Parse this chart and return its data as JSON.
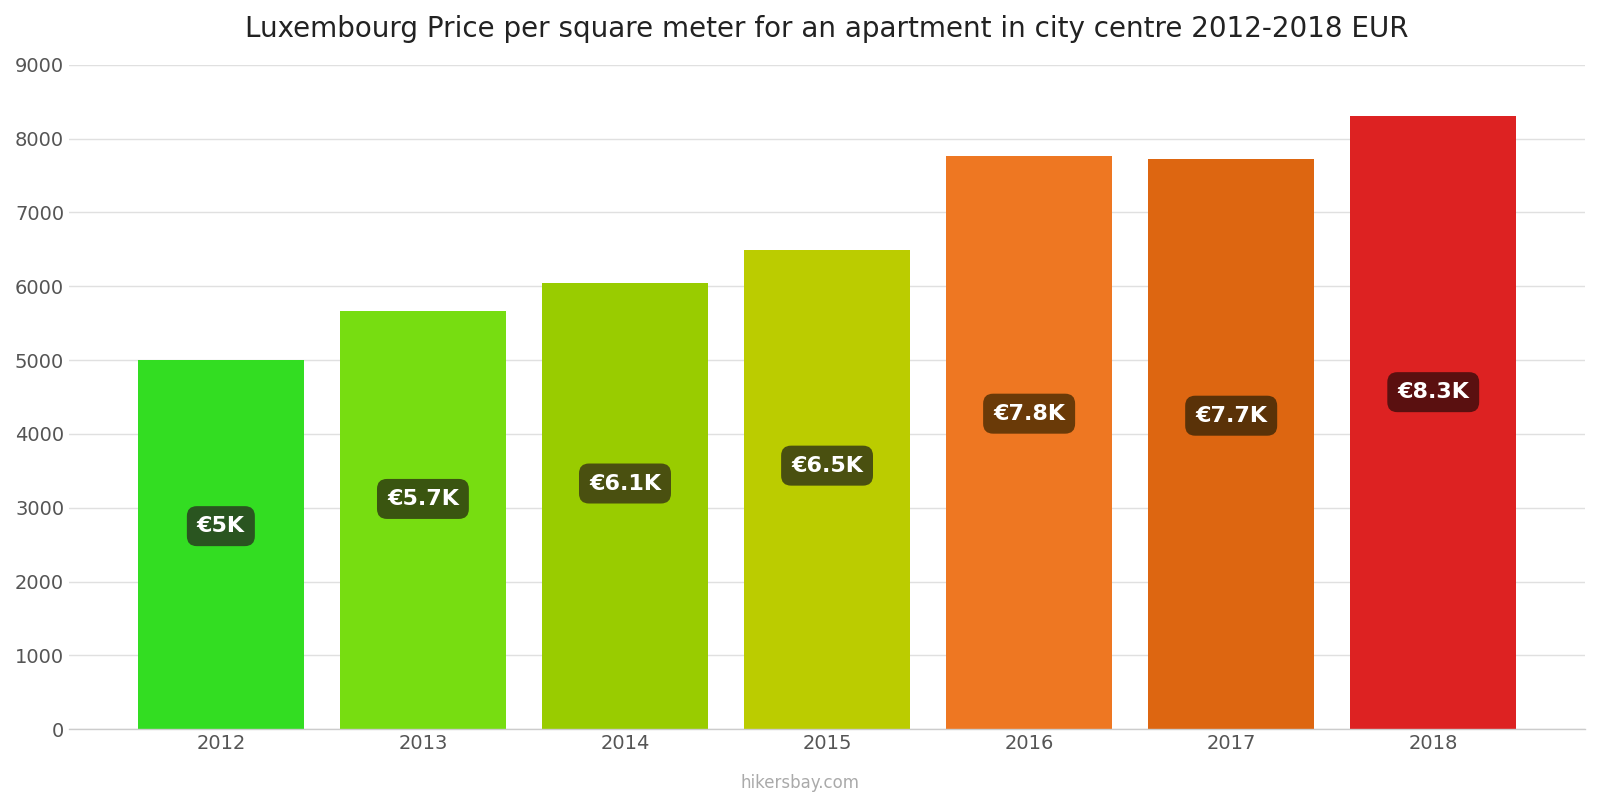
{
  "title": "Luxembourg Price per square meter for an apartment in city centre 2012-2018 EUR",
  "years": [
    2012,
    2013,
    2014,
    2015,
    2016,
    2017,
    2018
  ],
  "values": [
    5000,
    5670,
    6050,
    6490,
    7770,
    7720,
    8300
  ],
  "bar_colors": [
    "#33dd22",
    "#77dd11",
    "#99cc00",
    "#bbcc00",
    "#ee7722",
    "#dd6611",
    "#dd2222"
  ],
  "label_texts": [
    "€5K",
    "€5.7K",
    "€6.1K",
    "€6.5K",
    "€7.8K",
    "€7.7K",
    "€8.3K"
  ],
  "label_bg_colors": [
    "#2a5520",
    "#3a5510",
    "#4a5010",
    "#4a5010",
    "#6a3a08",
    "#5a3208",
    "#5a1010"
  ],
  "ylim": [
    0,
    9000
  ],
  "yticks": [
    0,
    1000,
    2000,
    3000,
    4000,
    5000,
    6000,
    7000,
    8000,
    9000
  ],
  "watermark": "hikersbay.com",
  "background_color": "#ffffff",
  "grid_color": "#e0e0e0",
  "title_fontsize": 20,
  "tick_fontsize": 14,
  "label_fontsize": 16,
  "bar_width": 0.82
}
